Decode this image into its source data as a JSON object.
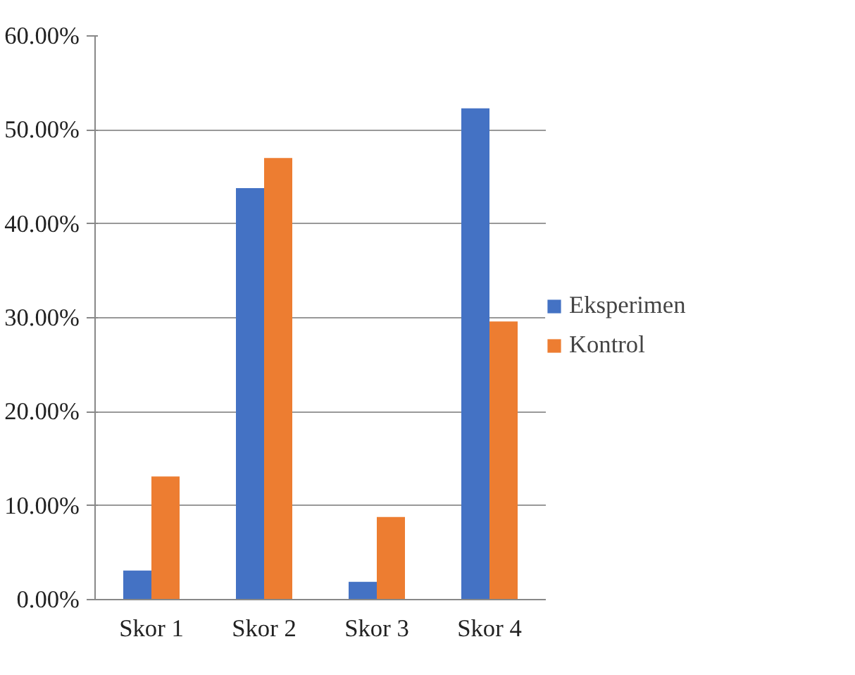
{
  "chart_data": {
    "type": "bar",
    "categories": [
      "Skor 1",
      "Skor 2",
      "Skor 3",
      "Skor 4"
    ],
    "series": [
      {
        "name": "Eksperimen",
        "color": "#4472c4",
        "values": [
          3.1,
          43.8,
          1.9,
          52.3
        ]
      },
      {
        "name": "Kontrol",
        "color": "#ed7d31",
        "values": [
          13.1,
          47.0,
          8.8,
          29.6
        ]
      }
    ],
    "ylim": [
      0,
      60
    ],
    "yticks": [
      {
        "value": 0,
        "label": "0.00%"
      },
      {
        "value": 10,
        "label": "10.00%"
      },
      {
        "value": 20,
        "label": "20.00%"
      },
      {
        "value": 30,
        "label": "30.00%"
      },
      {
        "value": 40,
        "label": "40.00%"
      },
      {
        "value": 50,
        "label": "50.00%"
      },
      {
        "value": 60,
        "label": "60.00%"
      }
    ],
    "grid": "y",
    "legend": "right"
  }
}
